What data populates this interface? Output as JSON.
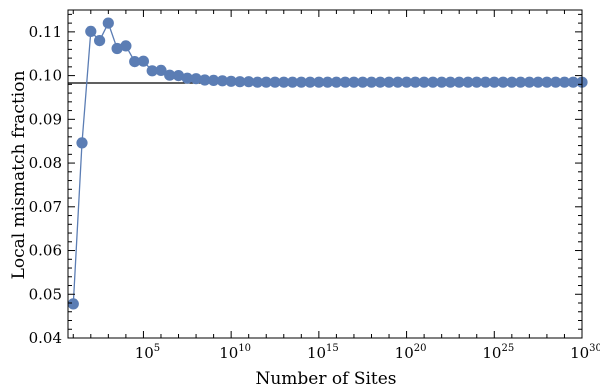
{
  "chart_data": {
    "type": "line",
    "xlabel": "Number of Sites",
    "ylabel": "Local mismatch fraction",
    "x_scale": "log10",
    "xlim_exponent": [
      0.7,
      30
    ],
    "ylim": [
      0.04,
      0.115
    ],
    "x_ticks": [
      {
        "base": "10",
        "exp": "5",
        "value_exp": 5
      },
      {
        "base": "10",
        "exp": "10",
        "value_exp": 10
      },
      {
        "base": "10",
        "exp": "15",
        "value_exp": 15
      },
      {
        "base": "10",
        "exp": "20",
        "value_exp": 20
      },
      {
        "base": "10",
        "exp": "25",
        "value_exp": 25
      },
      {
        "base": "10",
        "exp": "30",
        "value_exp": 30
      }
    ],
    "y_ticks": [
      {
        "value": 0.04,
        "label": "0.04"
      },
      {
        "value": 0.05,
        "label": "0.05"
      },
      {
        "value": 0.06,
        "label": "0.06"
      },
      {
        "value": 0.07,
        "label": "0.07"
      },
      {
        "value": 0.08,
        "label": "0.08"
      },
      {
        "value": 0.09,
        "label": "0.09"
      },
      {
        "value": 0.1,
        "label": "0.10"
      },
      {
        "value": 0.11,
        "label": "0.11"
      }
    ],
    "reference_line": {
      "y": 0.0983
    },
    "colors": {
      "series": "#5B7DB4",
      "reference": "#000000",
      "frame": "#000000"
    },
    "series": [
      {
        "x_exponent": [
          1,
          1.5,
          2,
          2.5,
          3,
          3.5,
          4,
          4.5,
          5,
          5.5,
          6,
          6.5,
          7,
          7.5,
          8,
          8.5,
          9,
          9.5,
          10,
          10.5,
          11,
          11.5,
          12,
          12.5,
          13,
          13.5,
          14,
          14.5,
          15,
          15.5,
          16,
          16.5,
          17,
          17.5,
          18,
          18.5,
          19,
          19.5,
          20,
          20.5,
          21,
          21.5,
          22,
          22.5,
          23,
          23.5,
          24,
          24.5,
          25,
          25.5,
          26,
          26.5,
          27,
          27.5,
          28,
          28.5,
          29,
          29.5,
          30
        ],
        "y": [
          0.0478,
          0.0846,
          0.1101,
          0.108,
          0.112,
          0.1062,
          0.1068,
          0.1032,
          0.1033,
          0.1011,
          0.1012,
          0.1001,
          0.1,
          0.0994,
          0.0993,
          0.099,
          0.0989,
          0.0988,
          0.0987,
          0.0986,
          0.0986,
          0.0985,
          0.0985,
          0.0985,
          0.0985,
          0.0985,
          0.0985,
          0.0985,
          0.0985,
          0.0985,
          0.0985,
          0.0985,
          0.0985,
          0.0985,
          0.0985,
          0.0985,
          0.0985,
          0.0985,
          0.0985,
          0.0985,
          0.0985,
          0.0985,
          0.0985,
          0.0985,
          0.0985,
          0.0985,
          0.0985,
          0.0985,
          0.0985,
          0.0985,
          0.0985,
          0.0985,
          0.0985,
          0.0985,
          0.0985,
          0.0985,
          0.0985,
          0.0985,
          0.0985
        ]
      }
    ]
  }
}
